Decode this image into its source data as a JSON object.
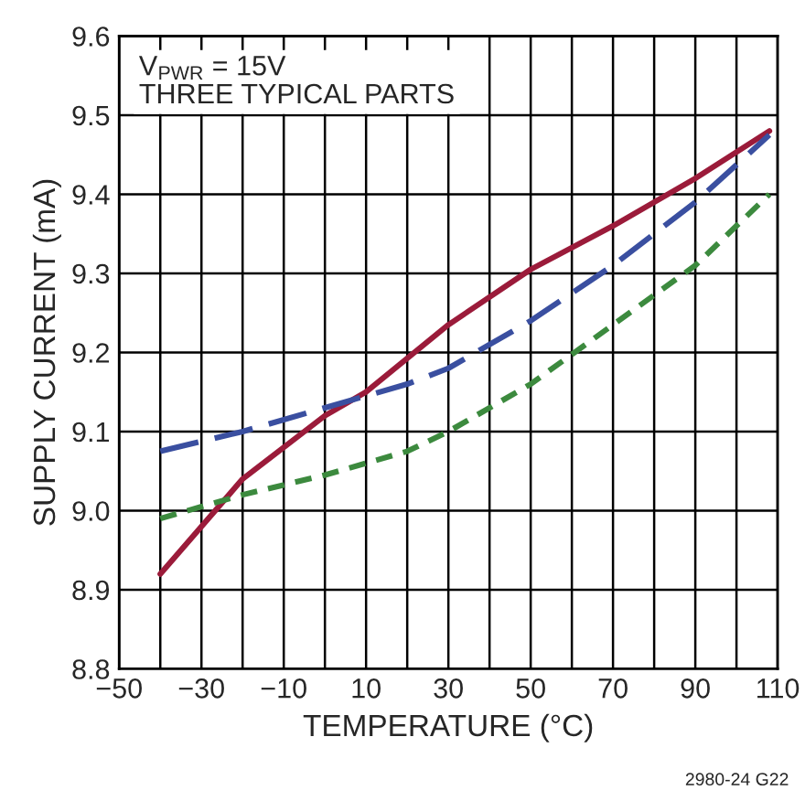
{
  "chart_data": {
    "type": "line",
    "xlabel": "TEMPERATURE (°C)",
    "ylabel": "SUPPLY CURRENT (mA)",
    "xlim": [
      -50,
      110
    ],
    "xticks": [
      -50,
      {
        "value": -40,
        "label": null
      },
      -30,
      {
        "value": -20,
        "label": null
      },
      -10,
      {
        "value": 0,
        "label": null
      },
      10,
      {
        "value": 20,
        "label": null
      },
      30,
      {
        "value": 40,
        "label": null
      },
      50,
      {
        "value": 60,
        "label": null
      },
      70,
      {
        "value": 80,
        "label": null
      },
      90,
      {
        "value": 100,
        "label": null
      },
      110
    ],
    "ylim": [
      8.8,
      9.6
    ],
    "yticks": [
      8.8,
      8.9,
      {
        "value": 9,
        "label": "9.0"
      },
      9.1,
      9.2,
      9.3,
      9.4,
      9.5,
      9.6
    ],
    "grid": true,
    "series": [
      {
        "color": "#9b1b3a",
        "line_style": "solid",
        "x": [
          -40,
          -20,
          0,
          10,
          30,
          50,
          70,
          90,
          108
        ],
        "values": [
          8.92,
          9.04,
          9.12,
          9.15,
          9.235,
          9.305,
          9.36,
          9.42,
          9.48
        ]
      },
      {
        "color": "#3a4fa0",
        "line_style": "dashed",
        "x": [
          -40,
          -20,
          0,
          20,
          30,
          50,
          70,
          90,
          108
        ],
        "values": [
          9.075,
          9.1,
          9.13,
          9.16,
          9.18,
          9.24,
          9.31,
          9.39,
          9.475
        ]
      },
      {
        "color": "#3c8a3e",
        "line_style": "dotted",
        "x": [
          -40,
          -20,
          0,
          20,
          30,
          50,
          70,
          90,
          108
        ],
        "values": [
          8.99,
          9.02,
          9.045,
          9.075,
          9.1,
          9.16,
          9.235,
          9.31,
          9.4
        ]
      }
    ],
    "annotations": [
      "V$_{PWR}$ = 15V\nTHREE TYPICAL PARTS",
      "2980-24 G22"
    ]
  }
}
